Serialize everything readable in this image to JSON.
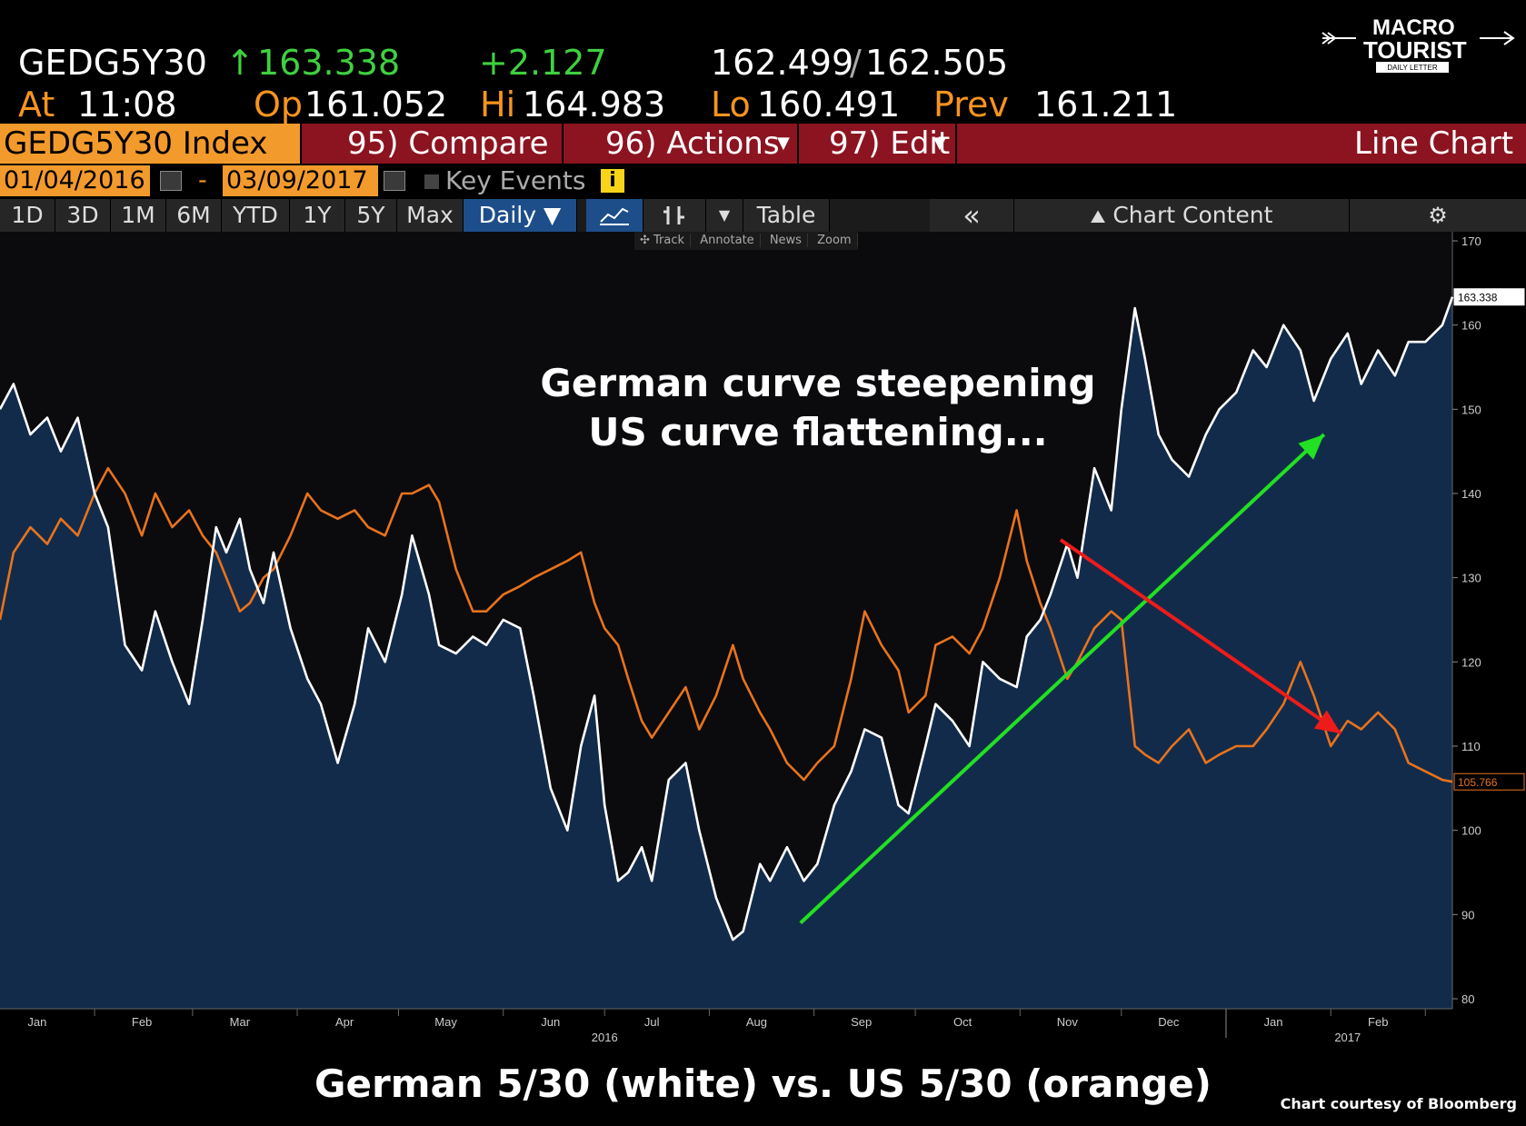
{
  "quote": {
    "ticker": "GEDG5Y30",
    "arrow": "↑",
    "last": "163.338",
    "change": "+2.127",
    "bid_ask_bid": "162.499",
    "bid_ask_slash": "/",
    "bid_ask_ask": "162.505",
    "at_label": "At",
    "at_time": "11:08",
    "open_label": "Op",
    "open": "161.052",
    "high_label": "Hi",
    "high": "164.983",
    "low_label": "Lo",
    "low": "160.491",
    "prev_label": "Prev",
    "prev": "161.211"
  },
  "logo": {
    "line1": "MACRO",
    "line2": "TOURIST",
    "line3": "DAILY LETTER"
  },
  "toolbar": {
    "security": "GEDG5Y30 Index",
    "compare": "95) Compare",
    "actions": "96) Actions",
    "edit": "97) Edit",
    "chart_type": "Line Chart"
  },
  "range": {
    "start": "01/04/2016",
    "dash": "-",
    "end": "03/09/2017",
    "key_events": "Key Events",
    "info": "i"
  },
  "period_buttons": [
    "1D",
    "3D",
    "1M",
    "6M",
    "YTD",
    "1Y",
    "5Y",
    "Max"
  ],
  "frequency": "Daily ▼",
  "tool_buttons": {
    "table": "Table",
    "collapse": "«",
    "chart_content": "Chart Content",
    "settings": "⚙"
  },
  "chart_tools": [
    "✣ Track",
    "Annotate",
    "News",
    "Zoom"
  ],
  "annotation": {
    "line1": "German curve steepening",
    "line2": "US curve flattening..."
  },
  "caption": "German 5/30 (white) vs. US 5/30 (orange)",
  "credit": "Chart courtesy of Bloomberg",
  "colors": {
    "accent_orange": "#f39a2c",
    "menu_red": "#8b1420",
    "area_fill": "#132b4a",
    "white_line": "#ffffff",
    "orange_line": "#e8731c",
    "green_arrow": "#22e022",
    "red_arrow": "#ee1b1b"
  },
  "chart_data": {
    "type": "line",
    "xlim": [
      "2016-01-04",
      "2017-03-09"
    ],
    "ylim": [
      80,
      170
    ],
    "y_ticks": [
      80,
      90,
      100,
      110,
      120,
      130,
      140,
      150,
      160,
      170
    ],
    "x_month_labels": [
      {
        "date": "2016-01-15",
        "label": "Jan"
      },
      {
        "date": "2016-02-15",
        "label": "Feb"
      },
      {
        "date": "2016-03-15",
        "label": "Mar"
      },
      {
        "date": "2016-04-15",
        "label": "Apr"
      },
      {
        "date": "2016-05-15",
        "label": "May"
      },
      {
        "date": "2016-06-15",
        "label": "Jun"
      },
      {
        "date": "2016-07-15",
        "label": "Jul"
      },
      {
        "date": "2016-08-15",
        "label": "Aug"
      },
      {
        "date": "2016-09-15",
        "label": "Sep"
      },
      {
        "date": "2016-10-15",
        "label": "Oct"
      },
      {
        "date": "2016-11-15",
        "label": "Nov"
      },
      {
        "date": "2016-12-15",
        "label": "Dec"
      },
      {
        "date": "2017-01-15",
        "label": "Jan"
      },
      {
        "date": "2017-02-15",
        "label": "Feb"
      }
    ],
    "x_year_labels": [
      {
        "date": "2016-07-01",
        "label": "2016"
      },
      {
        "date": "2017-02-06",
        "label": "2017"
      }
    ],
    "series": [
      {
        "name": "GEDG5Y30",
        "color": "#ffffff",
        "last_label": "163.338",
        "points": [
          [
            "2016-01-04",
            150
          ],
          [
            "2016-01-08",
            153
          ],
          [
            "2016-01-13",
            147
          ],
          [
            "2016-01-18",
            149
          ],
          [
            "2016-01-22",
            145
          ],
          [
            "2016-01-27",
            149
          ],
          [
            "2016-02-01",
            140
          ],
          [
            "2016-02-05",
            136
          ],
          [
            "2016-02-10",
            122
          ],
          [
            "2016-02-15",
            119
          ],
          [
            "2016-02-19",
            126
          ],
          [
            "2016-02-24",
            120
          ],
          [
            "2016-02-29",
            115
          ],
          [
            "2016-03-04",
            125
          ],
          [
            "2016-03-08",
            136
          ],
          [
            "2016-03-11",
            133
          ],
          [
            "2016-03-15",
            137
          ],
          [
            "2016-03-18",
            131
          ],
          [
            "2016-03-22",
            127
          ],
          [
            "2016-03-25",
            133
          ],
          [
            "2016-03-30",
            124
          ],
          [
            "2016-04-04",
            118
          ],
          [
            "2016-04-08",
            115
          ],
          [
            "2016-04-13",
            108
          ],
          [
            "2016-04-18",
            115
          ],
          [
            "2016-04-22",
            124
          ],
          [
            "2016-04-27",
            120
          ],
          [
            "2016-05-02",
            128
          ],
          [
            "2016-05-05",
            135
          ],
          [
            "2016-05-10",
            128
          ],
          [
            "2016-05-13",
            122
          ],
          [
            "2016-05-18",
            121
          ],
          [
            "2016-05-23",
            123
          ],
          [
            "2016-05-27",
            122
          ],
          [
            "2016-06-01",
            125
          ],
          [
            "2016-06-06",
            124
          ],
          [
            "2016-06-10",
            116
          ],
          [
            "2016-06-15",
            105
          ],
          [
            "2016-06-20",
            100
          ],
          [
            "2016-06-24",
            110
          ],
          [
            "2016-06-28",
            116
          ],
          [
            "2016-07-01",
            103
          ],
          [
            "2016-07-05",
            94
          ],
          [
            "2016-07-08",
            95
          ],
          [
            "2016-07-12",
            98
          ],
          [
            "2016-07-15",
            94
          ],
          [
            "2016-07-20",
            106
          ],
          [
            "2016-07-25",
            108
          ],
          [
            "2016-07-29",
            100
          ],
          [
            "2016-08-03",
            92
          ],
          [
            "2016-08-08",
            87
          ],
          [
            "2016-08-11",
            88
          ],
          [
            "2016-08-16",
            96
          ],
          [
            "2016-08-19",
            94
          ],
          [
            "2016-08-24",
            98
          ],
          [
            "2016-08-29",
            94
          ],
          [
            "2016-09-02",
            96
          ],
          [
            "2016-09-07",
            103
          ],
          [
            "2016-09-12",
            107
          ],
          [
            "2016-09-16",
            112
          ],
          [
            "2016-09-21",
            111
          ],
          [
            "2016-09-26",
            103
          ],
          [
            "2016-09-29",
            102
          ],
          [
            "2016-10-04",
            110
          ],
          [
            "2016-10-07",
            115
          ],
          [
            "2016-10-12",
            113
          ],
          [
            "2016-10-17",
            110
          ],
          [
            "2016-10-21",
            120
          ],
          [
            "2016-10-26",
            118
          ],
          [
            "2016-10-31",
            117
          ],
          [
            "2016-11-03",
            123
          ],
          [
            "2016-11-07",
            125
          ],
          [
            "2016-11-10",
            128
          ],
          [
            "2016-11-15",
            134
          ],
          [
            "2016-11-18",
            130
          ],
          [
            "2016-11-23",
            143
          ],
          [
            "2016-11-28",
            138
          ],
          [
            "2016-12-01",
            150
          ],
          [
            "2016-12-05",
            162
          ],
          [
            "2016-12-08",
            156
          ],
          [
            "2016-12-12",
            147
          ],
          [
            "2016-12-16",
            144
          ],
          [
            "2016-12-21",
            142
          ],
          [
            "2016-12-26",
            147
          ],
          [
            "2016-12-30",
            150
          ],
          [
            "2017-01-04",
            152
          ],
          [
            "2017-01-09",
            157
          ],
          [
            "2017-01-13",
            155
          ],
          [
            "2017-01-18",
            160
          ],
          [
            "2017-01-23",
            157
          ],
          [
            "2017-01-27",
            151
          ],
          [
            "2017-02-01",
            156
          ],
          [
            "2017-02-06",
            159
          ],
          [
            "2017-02-10",
            153
          ],
          [
            "2017-02-15",
            157
          ],
          [
            "2017-02-20",
            154
          ],
          [
            "2017-02-24",
            158
          ],
          [
            "2017-03-01",
            158
          ],
          [
            "2017-03-06",
            160
          ],
          [
            "2017-03-09",
            163.338
          ]
        ]
      },
      {
        "name": "US 5/30",
        "color": "#e8731c",
        "last_label": "105.766",
        "points": [
          [
            "2016-01-04",
            125
          ],
          [
            "2016-01-08",
            133
          ],
          [
            "2016-01-13",
            136
          ],
          [
            "2016-01-18",
            134
          ],
          [
            "2016-01-22",
            137
          ],
          [
            "2016-01-27",
            135
          ],
          [
            "2016-02-01",
            140
          ],
          [
            "2016-02-05",
            143
          ],
          [
            "2016-02-10",
            140
          ],
          [
            "2016-02-15",
            135
          ],
          [
            "2016-02-19",
            140
          ],
          [
            "2016-02-24",
            136
          ],
          [
            "2016-02-29",
            138
          ],
          [
            "2016-03-04",
            135
          ],
          [
            "2016-03-08",
            133
          ],
          [
            "2016-03-11",
            130
          ],
          [
            "2016-03-15",
            126
          ],
          [
            "2016-03-18",
            127
          ],
          [
            "2016-03-22",
            130
          ],
          [
            "2016-03-25",
            131
          ],
          [
            "2016-03-30",
            135
          ],
          [
            "2016-04-04",
            140
          ],
          [
            "2016-04-08",
            138
          ],
          [
            "2016-04-13",
            137
          ],
          [
            "2016-04-18",
            138
          ],
          [
            "2016-04-22",
            136
          ],
          [
            "2016-04-27",
            135
          ],
          [
            "2016-05-02",
            140
          ],
          [
            "2016-05-05",
            140
          ],
          [
            "2016-05-10",
            141
          ],
          [
            "2016-05-13",
            139
          ],
          [
            "2016-05-18",
            131
          ],
          [
            "2016-05-23",
            126
          ],
          [
            "2016-05-27",
            126
          ],
          [
            "2016-06-01",
            128
          ],
          [
            "2016-06-06",
            129
          ],
          [
            "2016-06-10",
            130
          ],
          [
            "2016-06-15",
            131
          ],
          [
            "2016-06-20",
            132
          ],
          [
            "2016-06-24",
            133
          ],
          [
            "2016-06-28",
            127
          ],
          [
            "2016-07-01",
            124
          ],
          [
            "2016-07-05",
            122
          ],
          [
            "2016-07-08",
            118
          ],
          [
            "2016-07-12",
            113
          ],
          [
            "2016-07-15",
            111
          ],
          [
            "2016-07-20",
            114
          ],
          [
            "2016-07-25",
            117
          ],
          [
            "2016-07-29",
            112
          ],
          [
            "2016-08-03",
            116
          ],
          [
            "2016-08-08",
            122
          ],
          [
            "2016-08-11",
            118
          ],
          [
            "2016-08-16",
            114
          ],
          [
            "2016-08-19",
            112
          ],
          [
            "2016-08-24",
            108
          ],
          [
            "2016-08-29",
            106
          ],
          [
            "2016-09-02",
            108
          ],
          [
            "2016-09-07",
            110
          ],
          [
            "2016-09-12",
            118
          ],
          [
            "2016-09-16",
            126
          ],
          [
            "2016-09-21",
            122
          ],
          [
            "2016-09-26",
            119
          ],
          [
            "2016-09-29",
            114
          ],
          [
            "2016-10-04",
            116
          ],
          [
            "2016-10-07",
            122
          ],
          [
            "2016-10-12",
            123
          ],
          [
            "2016-10-17",
            121
          ],
          [
            "2016-10-21",
            124
          ],
          [
            "2016-10-26",
            130
          ],
          [
            "2016-10-31",
            138
          ],
          [
            "2016-11-03",
            132
          ],
          [
            "2016-11-07",
            127
          ],
          [
            "2016-11-10",
            124
          ],
          [
            "2016-11-15",
            118
          ],
          [
            "2016-11-18",
            120
          ],
          [
            "2016-11-23",
            124
          ],
          [
            "2016-11-28",
            126
          ],
          [
            "2016-12-01",
            125
          ],
          [
            "2016-12-05",
            110
          ],
          [
            "2016-12-08",
            109
          ],
          [
            "2016-12-12",
            108
          ],
          [
            "2016-12-16",
            110
          ],
          [
            "2016-12-21",
            112
          ],
          [
            "2016-12-26",
            108
          ],
          [
            "2016-12-30",
            109
          ],
          [
            "2017-01-04",
            110
          ],
          [
            "2017-01-09",
            110
          ],
          [
            "2017-01-13",
            112
          ],
          [
            "2017-01-18",
            115
          ],
          [
            "2017-01-23",
            120
          ],
          [
            "2017-01-27",
            116
          ],
          [
            "2017-02-01",
            110
          ],
          [
            "2017-02-06",
            113
          ],
          [
            "2017-02-10",
            112
          ],
          [
            "2017-02-15",
            114
          ],
          [
            "2017-02-20",
            112
          ],
          [
            "2017-02-24",
            108
          ],
          [
            "2017-03-01",
            107
          ],
          [
            "2017-03-06",
            106
          ],
          [
            "2017-03-09",
            105.766
          ]
        ]
      }
    ],
    "arrows": [
      {
        "color": "#22e022",
        "from": [
          "2016-08-28",
          89
        ],
        "to": [
          "2017-01-30",
          147
        ]
      },
      {
        "color": "#ee1b1b",
        "from": [
          "2016-11-13",
          134.5
        ],
        "to": [
          "2017-02-04",
          111.5
        ]
      }
    ]
  }
}
